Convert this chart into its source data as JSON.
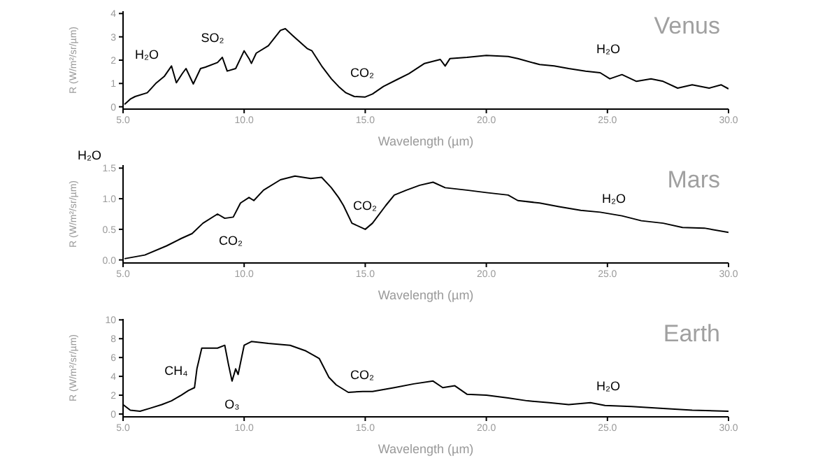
{
  "chart_data": [
    {
      "type": "line",
      "title": "Venus",
      "xlabel": "Wavelength (µm)",
      "ylabel": "R (W/m²/sr/µm)",
      "color": "#000000",
      "x": [
        5.06,
        5.3,
        5.5,
        6.0,
        6.35,
        6.7,
        7.0,
        7.2,
        7.45,
        7.6,
        7.9,
        8.2,
        8.4,
        8.9,
        9.1,
        9.3,
        9.65,
        10.0,
        10.2,
        10.3,
        10.5,
        11.0,
        11.5,
        11.7,
        12.0,
        12.6,
        12.8,
        13.2,
        13.6,
        13.9,
        14.2,
        14.55,
        15.0,
        15.3,
        15.75,
        16.3,
        16.8,
        17.45,
        18.1,
        18.3,
        18.5,
        19.2,
        20.0,
        20.9,
        21.3,
        22.2,
        22.8,
        23.4,
        24.1,
        24.7,
        25.1,
        25.6,
        26.2,
        26.8,
        27.3,
        27.9,
        28.5,
        29.2,
        29.7,
        30
      ],
      "values": [
        0.1,
        0.33,
        0.44,
        0.6,
        1.0,
        1.3,
        1.75,
        1.03,
        1.43,
        1.64,
        0.98,
        1.64,
        1.7,
        1.9,
        2.12,
        1.53,
        1.64,
        2.4,
        2.07,
        1.86,
        2.3,
        2.62,
        3.28,
        3.35,
        3.06,
        2.5,
        2.4,
        1.75,
        1.2,
        0.87,
        0.6,
        0.44,
        0.42,
        0.55,
        0.87,
        1.16,
        1.42,
        1.86,
        2.03,
        1.75,
        2.07,
        2.12,
        2.2,
        2.16,
        2.07,
        1.81,
        1.75,
        1.64,
        1.53,
        1.46,
        1.2,
        1.38,
        1.09,
        1.2,
        1.09,
        0.8,
        0.94,
        0.8,
        0.94,
        0.77
      ],
      "xlim": [
        5,
        30
      ],
      "xticks": [
        {
          "value": 5,
          "label": "5.0"
        },
        {
          "value": 10,
          "label": "10.0"
        },
        {
          "value": 15,
          "label": "15.0"
        },
        {
          "value": 20,
          "label": "20.0"
        },
        {
          "value": 25,
          "label": "25.0"
        },
        {
          "value": 30,
          "label": "30.0"
        }
      ],
      "ylim": [
        -0.1,
        4.1
      ],
      "yticks": [
        0,
        1,
        2,
        3,
        4
      ],
      "annotations": [
        "H₂O",
        "SO₂",
        "CO₂",
        "H₂O",
        "H₂O"
      ]
    },
    {
      "type": "line",
      "title": "Mars",
      "xlabel": "Wavelength (µm)",
      "ylabel": "R (W/m²/sr/µm)",
      "color": "#000000",
      "x": [
        5.06,
        5.9,
        6.8,
        7.4,
        7.85,
        8.3,
        8.9,
        9.2,
        9.55,
        9.85,
        10.2,
        10.4,
        10.8,
        11.5,
        12.1,
        12.75,
        13.2,
        13.6,
        13.9,
        14.1,
        14.45,
        15.0,
        15.3,
        15.85,
        16.2,
        16.7,
        17.25,
        17.8,
        18.3,
        19.2,
        20.0,
        20.9,
        21.3,
        22.2,
        23.0,
        23.9,
        24.7,
        25.6,
        26.4,
        27.3,
        28.1,
        29.0,
        30
      ],
      "values": [
        0.02,
        0.08,
        0.23,
        0.35,
        0.43,
        0.6,
        0.75,
        0.68,
        0.7,
        0.93,
        1.02,
        0.97,
        1.14,
        1.31,
        1.37,
        1.33,
        1.35,
        1.18,
        1.02,
        0.89,
        0.6,
        0.5,
        0.6,
        0.89,
        1.06,
        1.14,
        1.22,
        1.27,
        1.18,
        1.14,
        1.1,
        1.06,
        0.97,
        0.93,
        0.87,
        0.81,
        0.78,
        0.72,
        0.64,
        0.6,
        0.53,
        0.52,
        0.45
      ],
      "xlim": [
        5,
        30
      ],
      "xticks": [
        {
          "value": 5,
          "label": "5.0"
        },
        {
          "value": 10,
          "label": "10.0"
        },
        {
          "value": 15,
          "label": "15.0"
        },
        {
          "value": 20,
          "label": "20.0"
        },
        {
          "value": 25,
          "label": "25.0"
        },
        {
          "value": 30,
          "label": "30.0"
        }
      ],
      "ylim": [
        -0.05,
        1.55
      ],
      "yticks": [
        {
          "value": 0,
          "label": "0.0"
        },
        {
          "value": 0.5,
          "label": "0.5"
        },
        {
          "value": 1,
          "label": "1.0"
        },
        {
          "value": 1.5,
          "label": "1.5"
        }
      ],
      "annotations": [
        "CO₂",
        "CO₂",
        "H₂O"
      ]
    },
    {
      "type": "line",
      "title": "Earth",
      "xlabel": "Wavelength (µm)",
      "ylabel": "R (W/m²/sr/µm)",
      "color": "#000000",
      "x": [
        5.0,
        5.3,
        5.7,
        6.1,
        6.6,
        7.0,
        7.4,
        7.7,
        7.95,
        8.05,
        8.25,
        8.9,
        9.2,
        9.35,
        9.5,
        9.65,
        9.75,
        10.0,
        10.3,
        11.0,
        11.9,
        12.55,
        13.1,
        13.5,
        13.8,
        14.3,
        14.9,
        15.3,
        16.2,
        17.0,
        17.8,
        18.2,
        18.7,
        19.2,
        20.0,
        20.9,
        21.7,
        22.6,
        23.4,
        24.3,
        24.9,
        26.0,
        27.3,
        28.5,
        30
      ],
      "values": [
        1.0,
        0.4,
        0.3,
        0.6,
        1.0,
        1.4,
        2.0,
        2.5,
        2.8,
        4.8,
        7.0,
        7.0,
        7.3,
        5.3,
        3.5,
        4.8,
        4.2,
        7.3,
        7.7,
        7.5,
        7.3,
        6.7,
        5.9,
        3.9,
        3.1,
        2.3,
        2.4,
        2.4,
        2.8,
        3.2,
        3.5,
        2.8,
        3.0,
        2.1,
        2.0,
        1.7,
        1.4,
        1.2,
        1.0,
        1.2,
        0.9,
        0.8,
        0.6,
        0.4,
        0.3
      ],
      "xlim": [
        5,
        30
      ],
      "xticks": [
        {
          "value": 5,
          "label": "5.0"
        },
        {
          "value": 10,
          "label": "10.0"
        },
        {
          "value": 15,
          "label": "15.0"
        },
        {
          "value": 20,
          "label": "20.0"
        },
        {
          "value": 25,
          "label": "25.0"
        },
        {
          "value": 30,
          "label": "30.0"
        }
      ],
      "ylim": [
        -0.3,
        10.1
      ],
      "yticks": [
        0,
        2,
        4,
        6,
        8,
        10
      ],
      "annotations": [
        "CH₄",
        "O₃",
        "CO₂",
        "H₂O"
      ]
    }
  ]
}
